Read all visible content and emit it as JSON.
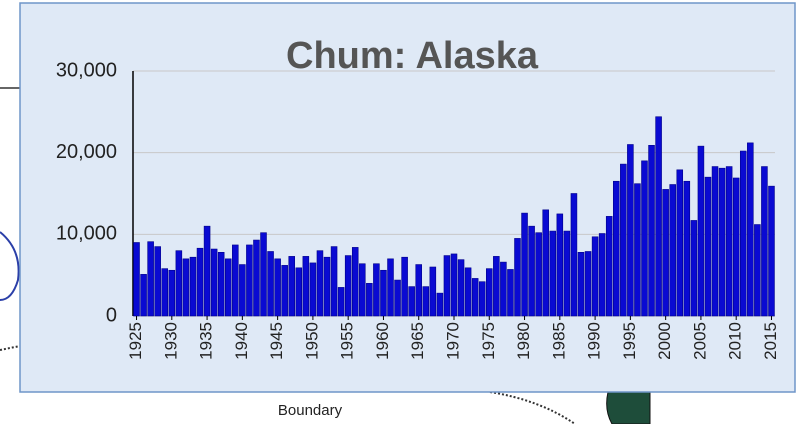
{
  "background_label": "Boundary",
  "chart_data": {
    "type": "bar",
    "title": "Chum: Alaska",
    "color": "#0a0ad2",
    "x": [
      1925,
      1926,
      1927,
      1928,
      1929,
      1930,
      1931,
      1932,
      1933,
      1934,
      1935,
      1936,
      1937,
      1938,
      1939,
      1940,
      1941,
      1942,
      1943,
      1944,
      1945,
      1946,
      1947,
      1948,
      1949,
      1950,
      1951,
      1952,
      1953,
      1954,
      1955,
      1956,
      1957,
      1958,
      1959,
      1960,
      1961,
      1962,
      1963,
      1964,
      1965,
      1966,
      1967,
      1968,
      1969,
      1970,
      1971,
      1972,
      1973,
      1974,
      1975,
      1976,
      1977,
      1978,
      1979,
      1980,
      1981,
      1982,
      1983,
      1984,
      1985,
      1986,
      1987,
      1988,
      1989,
      1990,
      1991,
      1992,
      1993,
      1994,
      1995,
      1996,
      1997,
      1998,
      1999,
      2000,
      2001,
      2002,
      2003,
      2004,
      2005,
      2006,
      2007,
      2008,
      2009,
      2010,
      2011,
      2012,
      2013,
      2014,
      2015
    ],
    "values": [
      9000,
      5100,
      9100,
      8500,
      5800,
      5600,
      8000,
      7000,
      7200,
      8300,
      11000,
      8200,
      7800,
      7000,
      8700,
      6300,
      8700,
      9300,
      10200,
      7900,
      7000,
      6200,
      7300,
      5900,
      7300,
      6500,
      8000,
      7200,
      8500,
      3500,
      7400,
      8400,
      6400,
      4000,
      6400,
      5600,
      7000,
      4400,
      7200,
      3600,
      6300,
      3600,
      6000,
      2800,
      7400,
      7600,
      6900,
      5900,
      4600,
      4200,
      5800,
      7300,
      6600,
      5700,
      9500,
      12600,
      11000,
      10200,
      13000,
      10400,
      12500,
      10400,
      15000,
      7800,
      7900,
      9700,
      10100,
      12200,
      16500,
      18600,
      21000,
      16200,
      19000,
      20900,
      24400,
      15500,
      16100,
      17900,
      16500,
      11700,
      20800,
      17000,
      18300,
      18100,
      18300,
      16900,
      20200,
      21200,
      11200,
      18300,
      15900
    ],
    "xlim": [
      1924.5,
      2015.5
    ],
    "xticks": [
      1925,
      1930,
      1935,
      1940,
      1945,
      1950,
      1955,
      1960,
      1965,
      1970,
      1975,
      1980,
      1985,
      1990,
      1995,
      2000,
      2005,
      2010,
      2015
    ],
    "ylim": [
      0,
      30000
    ],
    "yticks": [
      0,
      {
        "value": 10000,
        "label": "10,000"
      },
      {
        "value": 20000,
        "label": "20,000"
      },
      {
        "value": 30000,
        "label": "30,000"
      }
    ],
    "grid": true
  }
}
